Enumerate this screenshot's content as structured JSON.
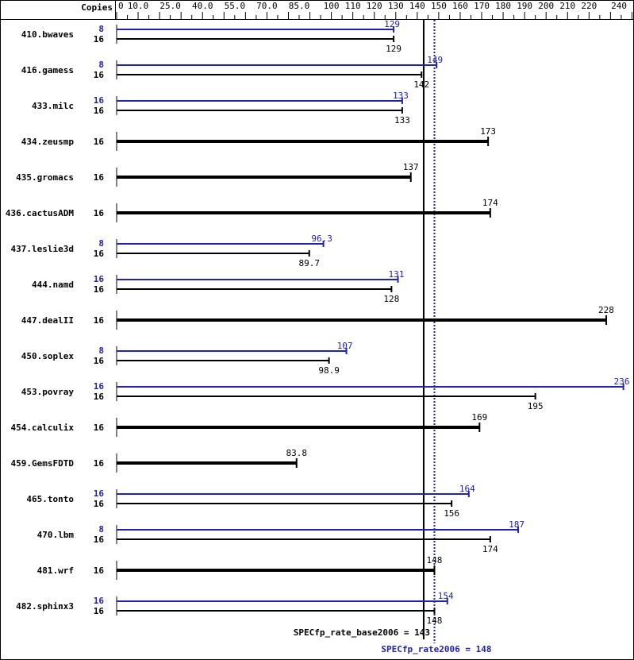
{
  "chart_data": {
    "type": "bar",
    "orientation": "horizontal",
    "axis_header": "Copies",
    "xlim": [
      0,
      240
    ],
    "tick_labels": [
      "0",
      "10.0",
      "25.0",
      "40.0",
      "55.0",
      "70.0",
      "85.0",
      "100",
      "110",
      "120",
      "130",
      "140",
      "150",
      "160",
      "170",
      "180",
      "190",
      "200",
      "210",
      "220",
      "240"
    ],
    "tick_values": [
      0,
      10,
      25,
      40,
      55,
      70,
      85,
      100,
      110,
      120,
      130,
      140,
      150,
      160,
      170,
      180,
      190,
      200,
      210,
      220,
      240
    ],
    "colors": {
      "base": "#000000",
      "peak": "#2222aa"
    },
    "benchmarks": [
      {
        "name": "410.bwaves",
        "peak_copies": "8",
        "peak": 129,
        "peak_label": "129",
        "base_copies": "16",
        "base": 129,
        "base_label": "129"
      },
      {
        "name": "416.gamess",
        "peak_copies": "8",
        "peak": 149,
        "peak_label": "149",
        "base_copies": "16",
        "base": 142,
        "base_label": "142"
      },
      {
        "name": "433.milc",
        "peak_copies": "16",
        "peak": 133,
        "peak_label": "133",
        "base_copies": "16",
        "base": 133,
        "base_label": "133"
      },
      {
        "name": "434.zeusmp",
        "base_copies": "16",
        "base": 173,
        "base_label": "173"
      },
      {
        "name": "435.gromacs",
        "base_copies": "16",
        "base": 137,
        "base_label": "137"
      },
      {
        "name": "436.cactusADM",
        "base_copies": "16",
        "base": 174,
        "base_label": "174"
      },
      {
        "name": "437.leslie3d",
        "peak_copies": "8",
        "peak": 96.3,
        "peak_label": "96.3",
        "base_copies": "16",
        "base": 89.7,
        "base_label": "89.7"
      },
      {
        "name": "444.namd",
        "peak_copies": "16",
        "peak": 131,
        "peak_label": "131",
        "base_copies": "16",
        "base": 128,
        "base_label": "128"
      },
      {
        "name": "447.dealII",
        "base_copies": "16",
        "base": 228,
        "base_label": "228"
      },
      {
        "name": "450.soplex",
        "peak_copies": "8",
        "peak": 107,
        "peak_label": "107",
        "base_copies": "16",
        "base": 98.9,
        "base_label": "98.9"
      },
      {
        "name": "453.povray",
        "peak_copies": "16",
        "peak": 236,
        "peak_label": "236",
        "base_copies": "16",
        "base": 195,
        "base_label": "195"
      },
      {
        "name": "454.calculix",
        "base_copies": "16",
        "base": 169,
        "base_label": "169"
      },
      {
        "name": "459.GemsFDTD",
        "base_copies": "16",
        "base": 83.8,
        "base_label": "83.8"
      },
      {
        "name": "465.tonto",
        "peak_copies": "16",
        "peak": 164,
        "peak_label": "164",
        "base_copies": "16",
        "base": 156,
        "base_label": "156"
      },
      {
        "name": "470.lbm",
        "peak_copies": "8",
        "peak": 187,
        "peak_label": "187",
        "base_copies": "16",
        "base": 174,
        "base_label": "174"
      },
      {
        "name": "481.wrf",
        "base_copies": "16",
        "base": 148,
        "base_label": "148"
      },
      {
        "name": "482.sphinx3",
        "peak_copies": "16",
        "peak": 154,
        "peak_label": "154",
        "base_copies": "16",
        "base": 148,
        "base_label": "148"
      }
    ],
    "reference_lines": [
      {
        "label": "SPECfp_rate_base2006 = 143",
        "value": 143,
        "style": "solid",
        "color": "#000000"
      },
      {
        "label": "SPECfp_rate2006 = 148",
        "value": 148,
        "style": "dotted",
        "color": "#2222aa"
      }
    ]
  }
}
